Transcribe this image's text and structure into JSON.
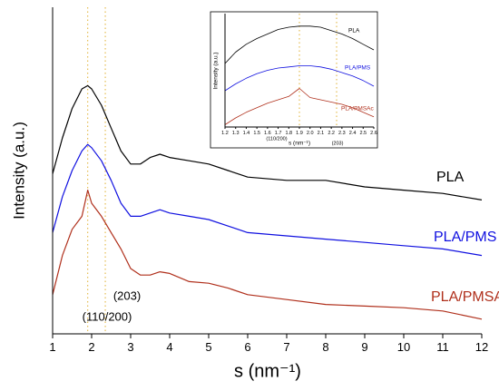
{
  "chart_data": [
    {
      "type": "line",
      "x_label": "s (nm⁻¹)",
      "y_label": "Intensity (a.u.)",
      "x": [
        1,
        1.25,
        1.5,
        1.75,
        1.9,
        2,
        2.25,
        2.5,
        2.75,
        3,
        3.25,
        3.5,
        3.75,
        4,
        4.5,
        5,
        5.5,
        6,
        7,
        8,
        9,
        10,
        11,
        12
      ],
      "series": [
        {
          "name": "PLA",
          "color": "#000000",
          "values": [
            49,
            60,
            69,
            75,
            76,
            75,
            70,
            63,
            56,
            52,
            52,
            54,
            55,
            54,
            53,
            52,
            50,
            48,
            47,
            47,
            45,
            44,
            43,
            41
          ]
        },
        {
          "name": "PLA/PMS",
          "color": "#1010e0",
          "values": [
            31,
            42,
            50,
            56,
            58,
            57,
            53,
            47,
            40,
            36,
            36,
            37,
            38,
            37,
            36,
            35,
            33,
            31,
            30,
            29,
            28,
            27,
            26,
            24
          ]
        },
        {
          "name": "PLA/PMSAc",
          "color": "#b0301c",
          "values": [
            12,
            24,
            32,
            36,
            44,
            40,
            36,
            31,
            26,
            20,
            18,
            18,
            19,
            18.5,
            16,
            15.5,
            14,
            12,
            10.5,
            9,
            8.5,
            8,
            7,
            4.5
          ]
        }
      ],
      "annotations": [
        "(110/200)",
        "(203)"
      ],
      "reference_lines": [
        1.9,
        2.35
      ],
      "xlim": [
        1,
        12
      ],
      "xticks": [
        1,
        2,
        3,
        4,
        5,
        6,
        7,
        8,
        9,
        10,
        11,
        12
      ],
      "ylim": [
        0,
        100
      ]
    },
    {
      "type": "line",
      "x_label": "s (nm⁻¹)",
      "y_label": "Intensity (a.u.)",
      "x": [
        1.2,
        1.3,
        1.4,
        1.5,
        1.6,
        1.7,
        1.8,
        1.9,
        2.0,
        2.1,
        2.2,
        2.3,
        2.4,
        2.5,
        2.6
      ],
      "series": [
        {
          "name": "PLA",
          "color": "#000000",
          "values": [
            56,
            66,
            73,
            78,
            82,
            86,
            88,
            89,
            89,
            88,
            85,
            82,
            78,
            73,
            68
          ]
        },
        {
          "name": "PLA/PMS",
          "color": "#1010e0",
          "values": [
            32,
            38,
            43,
            47,
            50,
            52,
            53,
            54,
            54,
            53,
            51,
            48,
            45,
            41,
            36
          ]
        },
        {
          "name": "PLA/PMSAc",
          "color": "#b0301c",
          "values": [
            2,
            8,
            13,
            17,
            21,
            24,
            27,
            34,
            26,
            24,
            22,
            20,
            17,
            13,
            9
          ]
        }
      ],
      "annotations": [
        "(110/200)",
        "(203)"
      ],
      "reference_lines": [
        1.9,
        2.25
      ],
      "xlim": [
        1.2,
        2.6
      ],
      "xticks": [
        1.2,
        1.3,
        1.4,
        1.5,
        1.6,
        1.7,
        1.8,
        1.9,
        {
          "value": 2,
          "label": "2.0"
        },
        2.1,
        2.2,
        2.3,
        2.4,
        2.5,
        2.6
      ],
      "ylim": [
        0,
        100
      ]
    }
  ]
}
